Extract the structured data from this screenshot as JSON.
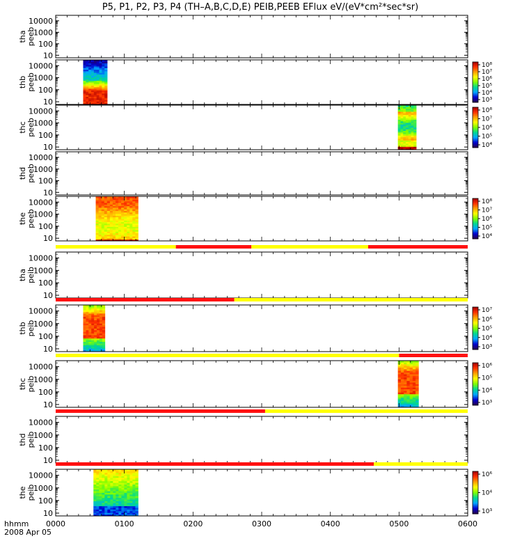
{
  "title": "P5, P1, P2, P3, P4 (TH–A,B,C,D,E) PEIB,PEEB EFlux eV/(eV*cm²*sec*sr)",
  "chart_data": {
    "type": "heatmap",
    "x_axis": {
      "label": "hhmm",
      "date": "2008 Apr 05",
      "range": [
        "00:00",
        "06:00"
      ],
      "ticks": [
        "0000",
        "0100",
        "0200",
        "0300",
        "0400",
        "0500",
        "0600"
      ]
    },
    "y_axis": {
      "scale": "log",
      "ticks": [
        "10",
        "100",
        "1000",
        "10000"
      ],
      "range_eV": [
        6,
        30000
      ]
    },
    "colorscale": [
      "#2a004a",
      "#0000d0",
      "#00a8ff",
      "#00d890",
      "#80ff00",
      "#ffff00",
      "#ffa000",
      "#ff3000",
      "#a00000"
    ],
    "panels": [
      {
        "probe": "tha",
        "product": "peeb",
        "label_top": "tha",
        "label_bottom": "peeb",
        "colorbar": null,
        "spectra": []
      },
      {
        "probe": "thb",
        "product": "peeb",
        "label_top": "thb",
        "label_bottom": "peeb",
        "colorbar": {
          "ticks": [
            "10⁸",
            "10⁷",
            "10⁶",
            "10⁵",
            "10⁴",
            "10³"
          ]
        },
        "spectra": [
          {
            "start": "00:24",
            "end": "00:45",
            "profile": "electron_hot_low"
          }
        ]
      },
      {
        "probe": "thc",
        "product": "peeb",
        "label_top": "thc",
        "label_bottom": "peeb",
        "colorbar": {
          "ticks": [
            "10⁸",
            "10⁷",
            "10⁶",
            "10⁵",
            "10⁴"
          ]
        },
        "spectra": [
          {
            "start": "04:59",
            "end": "05:15",
            "profile": "electron_mixed"
          }
        ]
      },
      {
        "probe": "thd",
        "product": "peeb",
        "label_top": "thd",
        "label_bottom": "peeb",
        "colorbar": null,
        "spectra": []
      },
      {
        "probe": "the",
        "product": "peeb",
        "label_top": "the",
        "label_bottom": "peeb",
        "colorbar": {
          "ticks": [
            "10⁸",
            "10⁷",
            "10⁶",
            "10⁵",
            "10⁴"
          ]
        },
        "spectra": [
          {
            "start": "00:35",
            "end": "01:12",
            "profile": "electron_warm"
          }
        ]
      },
      {
        "probe": "tha",
        "product": "peib",
        "label_top": "tha",
        "label_bottom": "peib",
        "colorbar": null,
        "spectra": [],
        "mode_bar": [
          {
            "start": "00:00",
            "end": "01:45",
            "mode": "yellow"
          },
          {
            "start": "01:45",
            "end": "02:51",
            "mode": "red"
          },
          {
            "start": "02:51",
            "end": "04:33",
            "mode": "yellow"
          },
          {
            "start": "04:33",
            "end": "06:00",
            "mode": "red"
          }
        ]
      },
      {
        "probe": "thb",
        "product": "peib",
        "label_top": "thb",
        "label_bottom": "peib",
        "colorbar": {
          "ticks": [
            "10⁷",
            "10⁶",
            "10⁵",
            "10⁴",
            "10³"
          ]
        },
        "spectra": [
          {
            "start": "00:24",
            "end": "00:43",
            "profile": "ion_hot"
          }
        ],
        "mode_bar": [
          {
            "start": "00:00",
            "end": "02:36",
            "mode": "red"
          },
          {
            "start": "02:36",
            "end": "06:00",
            "mode": "yellow"
          }
        ]
      },
      {
        "probe": "thc",
        "product": "peib",
        "label_top": "thc",
        "label_bottom": "peib",
        "colorbar": {
          "ticks": [
            "10⁶",
            "10⁵",
            "10⁴",
            "10³"
          ]
        },
        "spectra": [
          {
            "start": "04:59",
            "end": "05:17",
            "profile": "ion_hot"
          }
        ],
        "mode_bar": [
          {
            "start": "00:00",
            "end": "05:00",
            "mode": "yellow"
          },
          {
            "start": "05:00",
            "end": "06:00",
            "mode": "red"
          }
        ]
      },
      {
        "probe": "thd",
        "product": "peib",
        "label_top": "thd",
        "label_bottom": "peib",
        "colorbar": null,
        "spectra": [],
        "mode_bar": [
          {
            "start": "00:00",
            "end": "03:03",
            "mode": "red"
          },
          {
            "start": "03:03",
            "end": "06:00",
            "mode": "yellow"
          }
        ]
      },
      {
        "probe": "the",
        "product": "peib",
        "label_top": "the",
        "label_bottom": "peib",
        "colorbar": {
          "ticks": [
            "10⁶",
            "10⁴",
            "10³"
          ]
        },
        "spectra": [
          {
            "start": "00:33",
            "end": "01:12",
            "profile": "ion_cool"
          }
        ],
        "mode_bar": [
          {
            "start": "00:00",
            "end": "04:38",
            "mode": "red"
          },
          {
            "start": "04:38",
            "end": "06:00",
            "mode": "yellow"
          }
        ]
      }
    ]
  }
}
